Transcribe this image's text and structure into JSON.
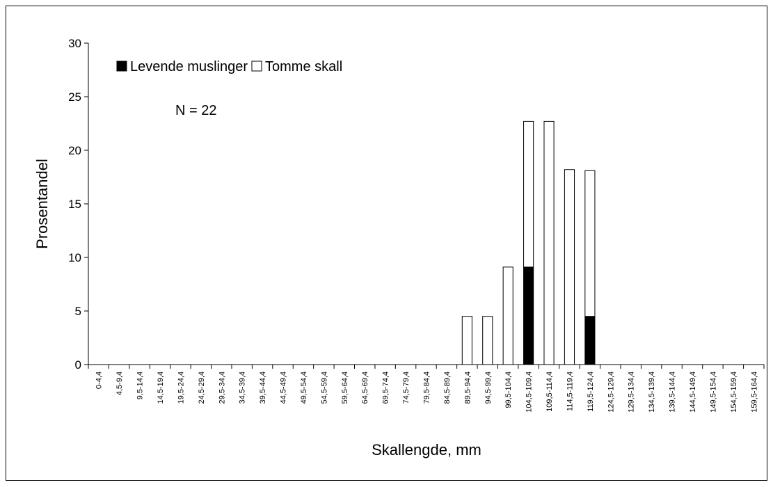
{
  "chart_data": {
    "type": "stacked_bar",
    "x_label": "Skallengde, mm",
    "y_label": "Prosentandel",
    "annotation": "N = 22",
    "categories": [
      "0-4,4",
      "4,5-9,4",
      "9,5-14,4",
      "14,5-19,4",
      "19,5-24,4",
      "24,5-29,4",
      "29,5-34,4",
      "34,5-39,4",
      "39,5-44,4",
      "44,5-49,4",
      "49,5-54,4",
      "54,5-59,4",
      "59,5-64,4",
      "64,5-69,4",
      "69,5-74,4",
      "74,5-79,4",
      "79,5-84,4",
      "84,5-89,4",
      "89,5-94,4",
      "94,5-99,4",
      "99,5-104,4",
      "104,5-109,4",
      "109,5-114,4",
      "114,5-119,4",
      "119,5-124,4",
      "124,5-129,4",
      "129,5-134,4",
      "134,5-139,4",
      "139,5-144,4",
      "144,5-149,4",
      "149,5-154,4",
      "154,5-159,4",
      "159,5-164,4"
    ],
    "series": [
      {
        "name": "Levende muslinger",
        "color": "#000000",
        "values": [
          0,
          0,
          0,
          0,
          0,
          0,
          0,
          0,
          0,
          0,
          0,
          0,
          0,
          0,
          0,
          0,
          0,
          0,
          0,
          0,
          0,
          9.1,
          0,
          0,
          4.5,
          0,
          0,
          0,
          0,
          0,
          0,
          0,
          0
        ]
      },
      {
        "name": "Tomme skall",
        "color": "#ffffff",
        "values": [
          0,
          0,
          0,
          0,
          0,
          0,
          0,
          0,
          0,
          0,
          0,
          0,
          0,
          0,
          0,
          0,
          0,
          0,
          4.5,
          4.5,
          9.1,
          13.6,
          22.7,
          18.2,
          13.6,
          0,
          0,
          0,
          0,
          0,
          0,
          0,
          0
        ]
      }
    ],
    "ylim": [
      0,
      30
    ],
    "yticks": [
      0,
      5,
      10,
      15,
      20,
      25,
      30
    ],
    "grid": false,
    "legend": "top-left"
  }
}
